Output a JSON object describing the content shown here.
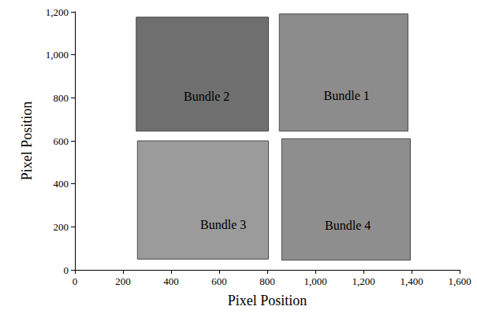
{
  "chart_data": {
    "type": "regions",
    "x_label": "Pixel Position",
    "y_label": "Pixel Position",
    "xlim": [
      0,
      1600
    ],
    "xticks": [
      0,
      200,
      400,
      600,
      800,
      1000,
      1200,
      1400,
      1600
    ],
    "ylim": [
      0,
      1200
    ],
    "yticks": [
      0,
      200,
      400,
      600,
      800,
      1000,
      1200
    ],
    "grid": false,
    "regions": [
      {
        "name": "Bundle 1",
        "color": "#8c8c8c",
        "x": [
          850,
          1385
        ],
        "y": [
          645,
          1190
        ],
        "label_at": [
          1130,
          810
        ]
      },
      {
        "name": "Bundle 2",
        "color": "#6f6f6f",
        "x": [
          255,
          805
        ],
        "y": [
          645,
          1175
        ],
        "label_at": [
          548,
          805
        ]
      },
      {
        "name": "Bundle 3",
        "color": "#9b9b9b",
        "x": [
          260,
          805
        ],
        "y": [
          50,
          600
        ],
        "label_at": [
          617,
          212
        ]
      },
      {
        "name": "Bundle 4",
        "color": "#8e8e8e",
        "x": [
          860,
          1395
        ],
        "y": [
          45,
          610
        ],
        "label_at": [
          1135,
          208
        ]
      }
    ]
  }
}
